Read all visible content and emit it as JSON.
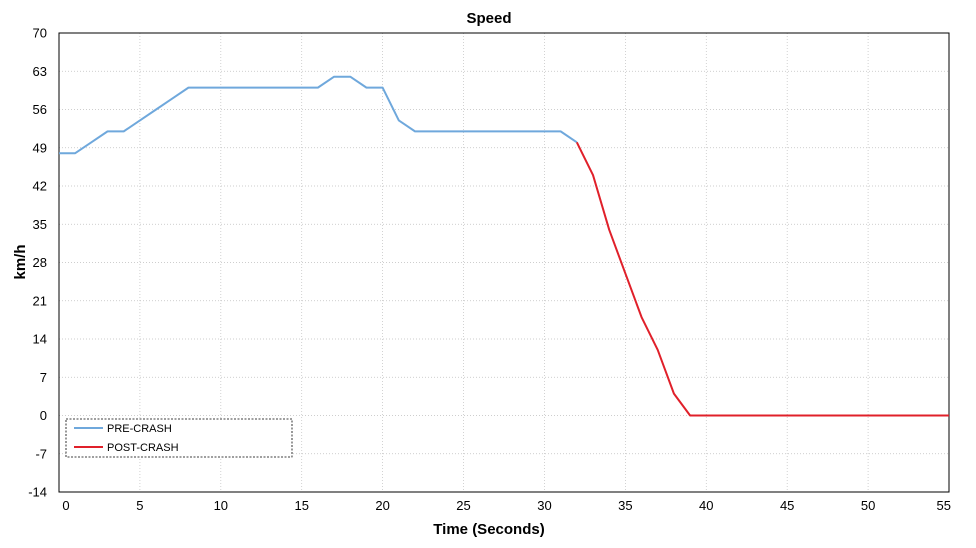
{
  "chart_data": {
    "type": "line",
    "title": "Speed",
    "xlabel": "Time (Seconds)",
    "ylabel": "km/h",
    "xlim": [
      0,
      55
    ],
    "ylim": [
      -14,
      70
    ],
    "xticks": [
      0,
      5,
      10,
      15,
      20,
      25,
      30,
      35,
      40,
      45,
      50,
      55
    ],
    "yticks": [
      -14,
      -7,
      0,
      7,
      14,
      21,
      28,
      35,
      42,
      49,
      56,
      63,
      70
    ],
    "grid": true,
    "legend_position": "bottom-left",
    "series": [
      {
        "name": "PRE-CRASH",
        "color": "#6fa8dc",
        "points": [
          [
            0,
            48
          ],
          [
            1,
            48
          ],
          [
            2,
            50
          ],
          [
            3,
            52
          ],
          [
            4,
            52
          ],
          [
            5,
            54
          ],
          [
            6,
            56
          ],
          [
            7,
            58
          ],
          [
            8,
            60
          ],
          [
            9,
            60
          ],
          [
            10,
            60
          ],
          [
            11,
            60
          ],
          [
            12,
            60
          ],
          [
            13,
            60
          ],
          [
            14,
            60
          ],
          [
            15,
            60
          ],
          [
            16,
            60
          ],
          [
            17,
            62
          ],
          [
            18,
            62
          ],
          [
            19,
            60
          ],
          [
            20,
            60
          ],
          [
            21,
            54
          ],
          [
            22,
            52
          ],
          [
            23,
            52
          ],
          [
            24,
            52
          ],
          [
            25,
            52
          ],
          [
            26,
            52
          ],
          [
            27,
            52
          ],
          [
            28,
            52
          ],
          [
            29,
            52
          ],
          [
            30,
            52
          ],
          [
            31,
            52
          ],
          [
            32,
            50
          ]
        ]
      },
      {
        "name": "POST-CRASH",
        "color": "#e0202a",
        "points": [
          [
            32,
            50
          ],
          [
            33,
            44
          ],
          [
            34,
            34
          ],
          [
            35,
            26
          ],
          [
            36,
            18
          ],
          [
            37,
            12
          ],
          [
            38,
            4
          ],
          [
            39,
            0
          ],
          [
            40,
            0
          ],
          [
            45,
            0
          ],
          [
            50,
            0
          ],
          [
            55,
            0
          ]
        ]
      }
    ]
  }
}
